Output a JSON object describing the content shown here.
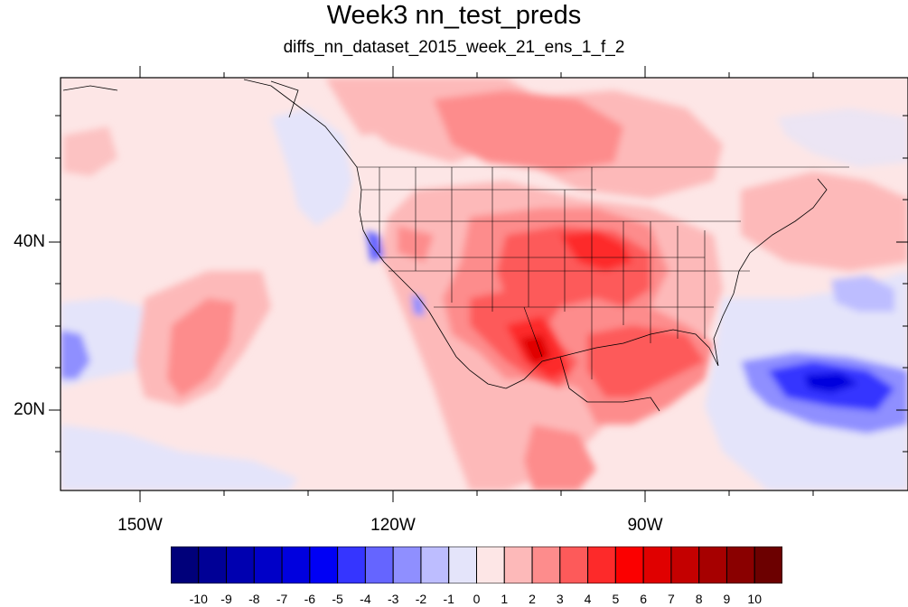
{
  "title": "Week3 nn_test_preds",
  "subtitle": "diffs_nn_dataset_2015_week_21_ens_1_f_2",
  "axes": {
    "x_ticks": [
      "150W",
      "120W",
      "90W"
    ],
    "y_ticks": [
      "40N",
      "20N"
    ]
  },
  "colorbar": {
    "labels": [
      "-10",
      "-9",
      "-8",
      "-7",
      "-6",
      "-5",
      "-4",
      "-3",
      "-2",
      "-1",
      "0",
      "1",
      "2",
      "3",
      "4",
      "5",
      "6",
      "7",
      "8",
      "9",
      "10"
    ],
    "colors": [
      "#00007a",
      "#000096",
      "#0000b0",
      "#0000c8",
      "#0000de",
      "#0000f5",
      "#3535ff",
      "#6565ff",
      "#8f8fff",
      "#bdbdff",
      "#e4e4fa",
      "#fde6e6",
      "#fdb9b9",
      "#fd8c8c",
      "#fd5a5a",
      "#fd2a2a",
      "#fb0000",
      "#e00000",
      "#c40000",
      "#a60000",
      "#8a0000",
      "#6c0000"
    ]
  }
}
